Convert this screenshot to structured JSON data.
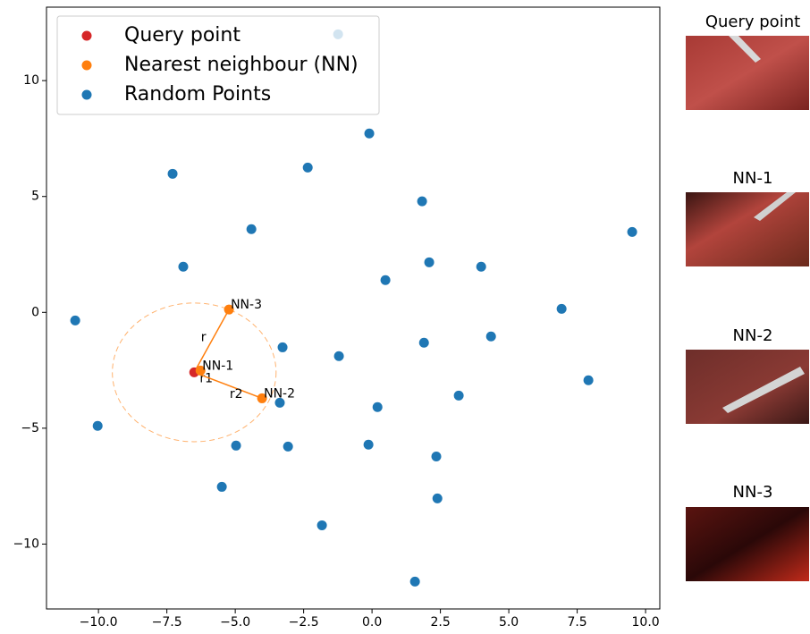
{
  "chart_data": {
    "type": "scatter",
    "series": [
      {
        "name": "Query point",
        "color": "#d62728",
        "x": [
          -6.5
        ],
        "values": [
          -2.59
        ]
      },
      {
        "name": "Nearest neighbour (NN)",
        "color": "#ff7f0e",
        "x": [
          -6.27,
          -4.02,
          -5.23
        ],
        "values": [
          -2.51,
          -3.71,
          0.12
        ],
        "point_labels": [
          "NN-1",
          "NN-2",
          "NN-3"
        ],
        "edge_labels": [
          "r1",
          "r2",
          "r"
        ]
      },
      {
        "name": "Random Points",
        "color": "#1f77b4",
        "x": [
          -1.24,
          -0.1,
          -2.35,
          -7.29,
          1.83,
          -4.41,
          9.51,
          2.09,
          3.99,
          -6.9,
          0.49,
          6.93,
          -10.85,
          4.35,
          -3.27,
          1.9,
          -1.21,
          3.17,
          -3.37,
          0.2,
          7.91,
          -10.03,
          -4.97,
          -3.07,
          -0.13,
          2.35,
          -5.49,
          2.39,
          -1.83,
          1.57
        ],
        "values": [
          12.0,
          7.72,
          6.25,
          5.98,
          4.79,
          3.59,
          3.47,
          2.16,
          1.97,
          1.97,
          1.39,
          0.15,
          -0.35,
          -1.04,
          -1.51,
          -1.31,
          -1.89,
          -3.59,
          -3.9,
          -4.09,
          -2.93,
          -4.9,
          -5.75,
          -5.79,
          -5.71,
          -6.22,
          -7.53,
          -8.03,
          -9.19,
          -11.62
        ]
      }
    ],
    "xlim": [
      -11.9,
      10.52
    ],
    "ylim": [
      -12.8,
      13.17
    ],
    "xticks": [
      {
        "value": -10,
        "label": "−10.0"
      },
      {
        "value": -7.5,
        "label": "−7.5"
      },
      {
        "value": -5,
        "label": "−5.0"
      },
      {
        "value": -2.5,
        "label": "−2.5"
      },
      {
        "value": 0,
        "label": "0.0"
      },
      {
        "value": 2.5,
        "label": "2.5"
      },
      {
        "value": 5,
        "label": "5.0"
      },
      {
        "value": 7.5,
        "label": "7.5"
      },
      {
        "value": 10,
        "label": "10.0"
      }
    ],
    "yticks": [
      {
        "value": -10,
        "label": "−10"
      },
      {
        "value": -5,
        "label": "−5"
      },
      0,
      5,
      10
    ],
    "legend": "upper left"
  },
  "panels": [
    {
      "title": "Query point"
    },
    {
      "title": "NN-1"
    },
    {
      "title": "NN-2"
    },
    {
      "title": "NN-3"
    }
  ]
}
